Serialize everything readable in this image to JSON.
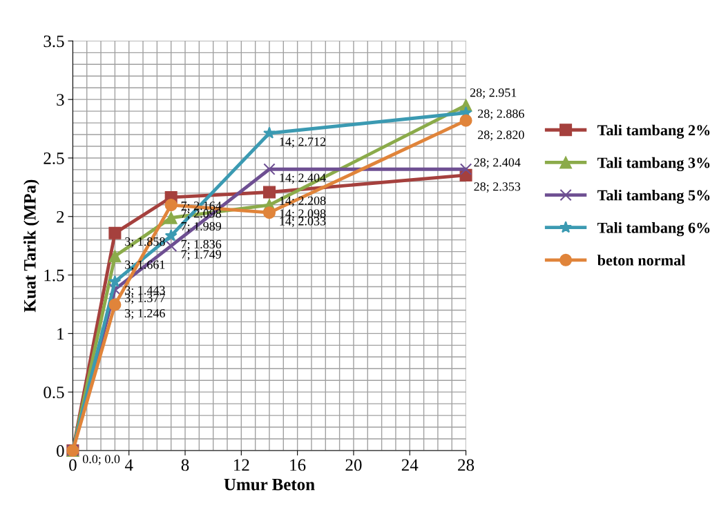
{
  "chart_data": {
    "type": "line",
    "xlabel": "Umur Beton",
    "ylabel": "Kuat Tarik (MPa)",
    "x": [
      0,
      3,
      7,
      14,
      28
    ],
    "series": [
      {
        "name": "Tali tambang 2%",
        "color": "#a5403d",
        "marker": "square",
        "values": [
          0,
          1.858,
          2.164,
          2.208,
          2.353
        ],
        "value_labels": [
          null,
          "3; 1.858",
          "7; 2.164",
          "14; 2.208",
          "28; 2.353"
        ]
      },
      {
        "name": "Tali tambang 3%",
        "color": "#8bab4a",
        "marker": "triangle",
        "values": [
          0,
          1.661,
          1.989,
          2.098,
          2.951
        ],
        "value_labels": [
          null,
          "3; 1.661",
          "7; 1.989",
          "14; 2.098",
          "28; 2.951"
        ]
      },
      {
        "name": "Tali tambang 5%",
        "color": "#6e4f92",
        "marker": "cross",
        "values": [
          0,
          1.377,
          1.749,
          2.404,
          2.404
        ],
        "value_labels": [
          null,
          "3; 1.377",
          "7; 1.749",
          "14; 2.404",
          "28; 2.404"
        ]
      },
      {
        "name": "Tali tambang 6%",
        "color": "#3b9ab2",
        "marker": "star",
        "values": [
          0,
          1.443,
          1.836,
          2.712,
          2.886
        ],
        "value_labels": [
          null,
          "3; 1.443",
          "7; 1.836",
          "14; 2.712",
          "28; 2.886"
        ]
      },
      {
        "name": "beton normal",
        "color": "#e0843a",
        "marker": "circle",
        "values": [
          0,
          1.246,
          2.098,
          2.033,
          2.82
        ],
        "value_labels": [
          "0.0; 0.0",
          "3; 1.246",
          "7; 2.098",
          "14; 2.033",
          "28; 2.820"
        ]
      }
    ],
    "xlim": [
      0,
      28
    ],
    "xticks": [
      0,
      4,
      8,
      12,
      16,
      20,
      24,
      28
    ],
    "ylim": [
      0,
      3.5
    ],
    "yticks": [
      0,
      {
        "value": 0.5,
        "label": "0.5"
      },
      1,
      {
        "value": 1.5,
        "label": "1.5"
      },
      2,
      {
        "value": 2.5,
        "label": "2.5"
      },
      3,
      {
        "value": 3.5,
        "label": "3.5"
      }
    ],
    "grid": true,
    "legend": "right",
    "line_style": "solid"
  }
}
